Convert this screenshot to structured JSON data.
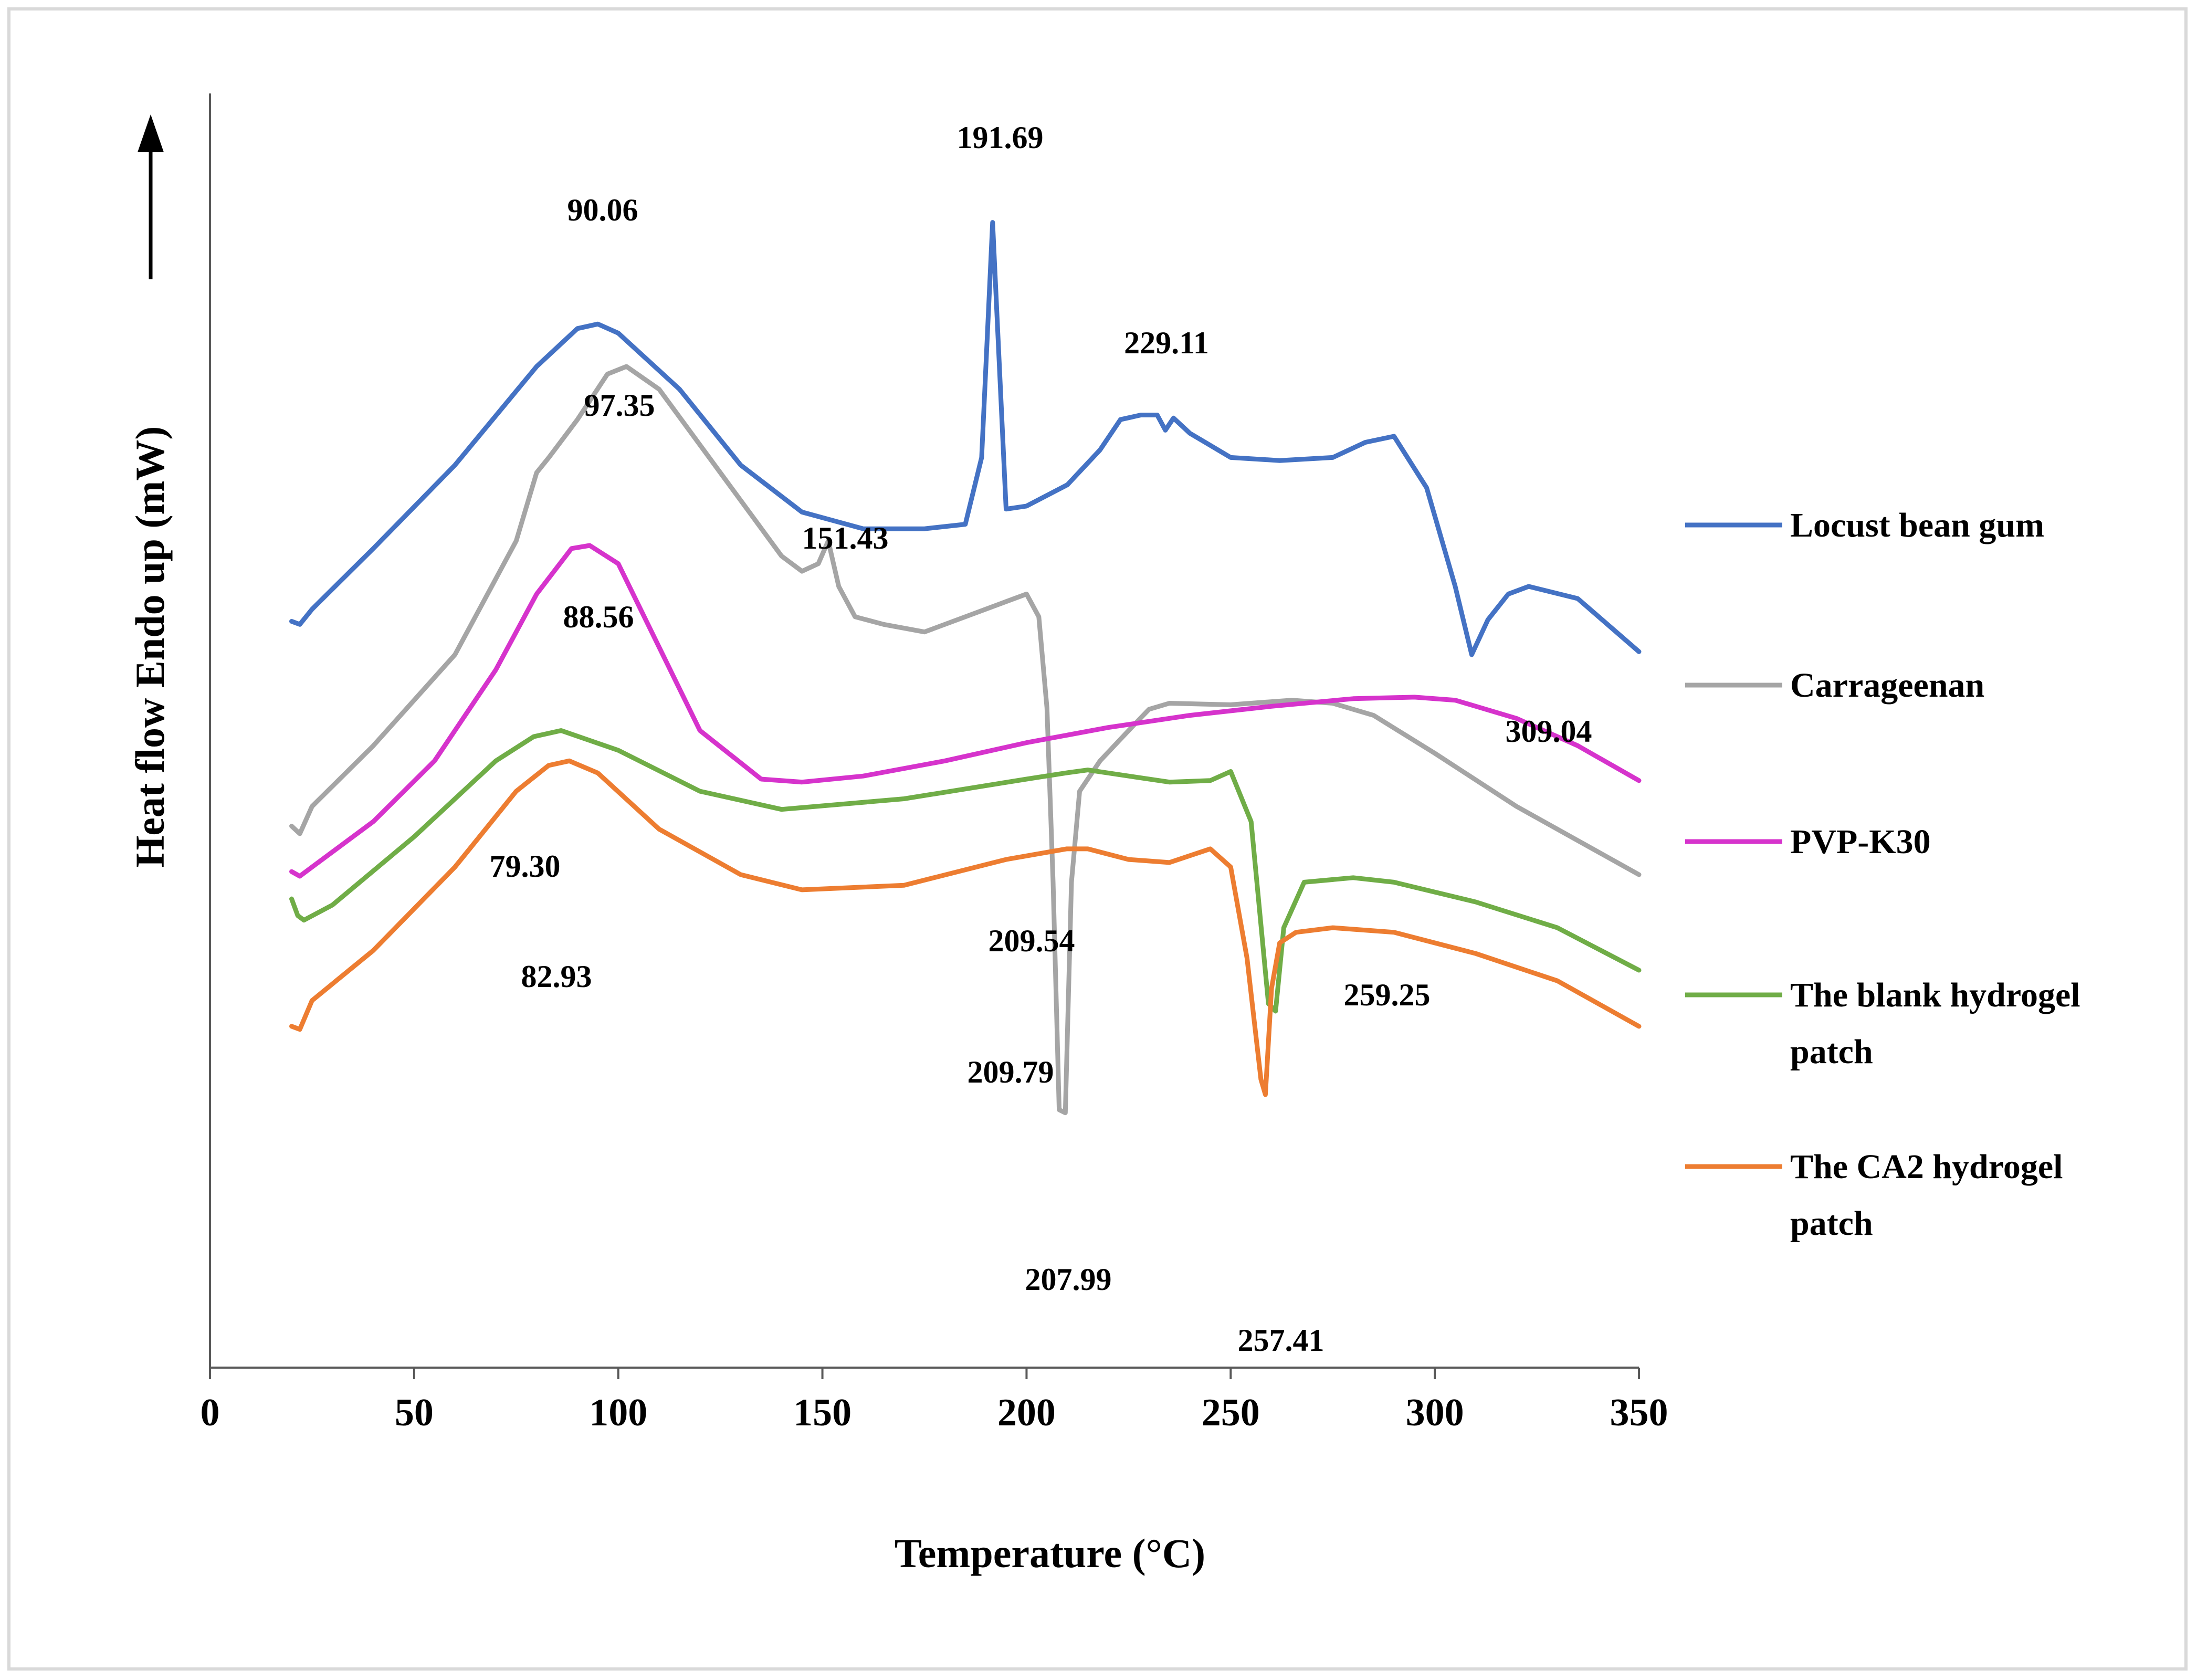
{
  "chart_data": {
    "type": "line",
    "xlabel": "Temperature (°C)",
    "ylabel": "Heat flow Endo up (mW)",
    "xlim": [
      0,
      350
    ],
    "xticks": [
      0,
      50,
      100,
      150,
      200,
      250,
      300,
      350
    ],
    "ylim": [
      -44,
      40
    ],
    "y_ticks_labeled": false,
    "grid": false,
    "legend_position": "right",
    "series": [
      {
        "name": "Locust bean gum",
        "color": "#4472c4",
        "x": [
          20,
          22,
          25,
          40,
          60,
          80,
          90,
          95,
          100,
          115,
          130,
          145,
          160,
          175,
          185,
          189,
          191.69,
          193,
          195,
          200,
          210,
          218,
          223,
          228,
          232,
          234,
          236,
          240,
          250,
          262,
          275,
          283,
          290,
          298,
          305,
          309.04,
          313,
          318,
          323,
          335,
          350
        ],
        "y": [
          5.2,
          5.0,
          6.0,
          10.0,
          15.5,
          22.0,
          24.5,
          24.8,
          24.2,
          20.5,
          15.5,
          12.4,
          11.3,
          11.3,
          11.6,
          16.0,
          31.5,
          24.0,
          12.6,
          12.8,
          14.2,
          16.5,
          18.5,
          18.8,
          18.8,
          17.8,
          18.6,
          17.6,
          16.0,
          15.8,
          16.0,
          17.0,
          17.4,
          14.0,
          7.5,
          3.0,
          5.3,
          7.0,
          7.5,
          6.7,
          3.2
        ]
      },
      {
        "name": "Carrageenan",
        "color": "#a5a5a5",
        "x": [
          20,
          22,
          25,
          40,
          60,
          75,
          80,
          83,
          90,
          97.35,
          102,
          110,
          125,
          140,
          145,
          149,
          151.43,
          154,
          158,
          165,
          175,
          185,
          195,
          200,
          203,
          205,
          206.5,
          207.99,
          209.5,
          211,
          213,
          218,
          225,
          230,
          235,
          250,
          265,
          275,
          285,
          300,
          320,
          350
        ],
        "y": [
          -8.3,
          -8.8,
          -7.0,
          -3.0,
          3.0,
          10.5,
          15.0,
          16.0,
          18.5,
          21.5,
          22.0,
          20.5,
          15.0,
          9.5,
          8.5,
          9.0,
          10.5,
          7.5,
          5.5,
          5.0,
          4.5,
          5.5,
          6.5,
          7.0,
          5.5,
          -0.5,
          -12.0,
          -27.0,
          -27.2,
          -12.0,
          -6.0,
          -4.0,
          -2.0,
          -0.6,
          -0.2,
          -0.3,
          0.0,
          -0.2,
          -1.0,
          -3.5,
          -7.0,
          -11.5
        ]
      },
      {
        "name": "PVP-K30",
        "color": "#d633cc",
        "x": [
          20,
          22,
          25,
          40,
          55,
          70,
          80,
          88.56,
          93,
          100,
          110,
          120,
          135,
          145,
          160,
          180,
          200,
          220,
          240,
          260,
          280,
          295,
          305,
          320,
          335,
          350
        ],
        "y": [
          -11.3,
          -11.6,
          -11.0,
          -8.0,
          -4.0,
          2.0,
          7.0,
          10.0,
          10.2,
          9.0,
          3.5,
          -2.0,
          -5.2,
          -5.4,
          -5.0,
          -4.0,
          -2.8,
          -1.8,
          -1.0,
          -0.4,
          0.1,
          0.2,
          0.0,
          -1.2,
          -3.0,
          -5.3
        ]
      },
      {
        "name": "The blank hydrogel patch",
        "color": "#70ad47",
        "x": [
          20,
          21.5,
          23,
          30,
          50,
          70,
          79.3,
          86,
          100,
          120,
          140,
          170,
          200,
          209.54,
          215,
          225,
          235,
          245,
          250,
          255,
          259.25,
          261,
          263,
          268,
          280,
          290,
          310,
          330,
          350
        ],
        "y": [
          -13.1,
          -14.2,
          -14.5,
          -13.5,
          -9.0,
          -4.0,
          -2.4,
          -2.0,
          -3.3,
          -6.0,
          -7.2,
          -6.5,
          -5.2,
          -4.8,
          -4.6,
          -5.0,
          -5.4,
          -5.3,
          -4.7,
          -8.0,
          -20.0,
          -20.5,
          -15.0,
          -12.0,
          -11.7,
          -12.0,
          -13.3,
          -15.0,
          -17.8
        ]
      },
      {
        "name": "The CA2 hydrogel patch",
        "color": "#ed7d31",
        "x": [
          20,
          22,
          25,
          40,
          60,
          75,
          82.93,
          88,
          95,
          110,
          130,
          145,
          170,
          195,
          209.79,
          215,
          225,
          235,
          245,
          250,
          254,
          257.41,
          258.5,
          260,
          262,
          266,
          275,
          290,
          310,
          330,
          350
        ],
        "y": [
          -21.5,
          -21.7,
          -19.8,
          -16.5,
          -11.0,
          -6.0,
          -4.3,
          -4.0,
          -4.8,
          -8.5,
          -11.5,
          -12.5,
          -12.2,
          -10.5,
          -9.8,
          -9.8,
          -10.5,
          -10.7,
          -9.8,
          -11.0,
          -17.0,
          -25.0,
          -26.0,
          -19.0,
          -16.0,
          -15.3,
          -15.0,
          -15.3,
          -16.7,
          -18.5,
          -21.5
        ]
      }
    ],
    "annotations": [
      "90.06",
      "191.69",
      "229.11",
      "97.35",
      "151.43",
      "309.04",
      "88.56",
      "79.30",
      "209.54",
      "259.25",
      "82.93",
      "209.79",
      "207.99",
      "257.41"
    ]
  }
}
